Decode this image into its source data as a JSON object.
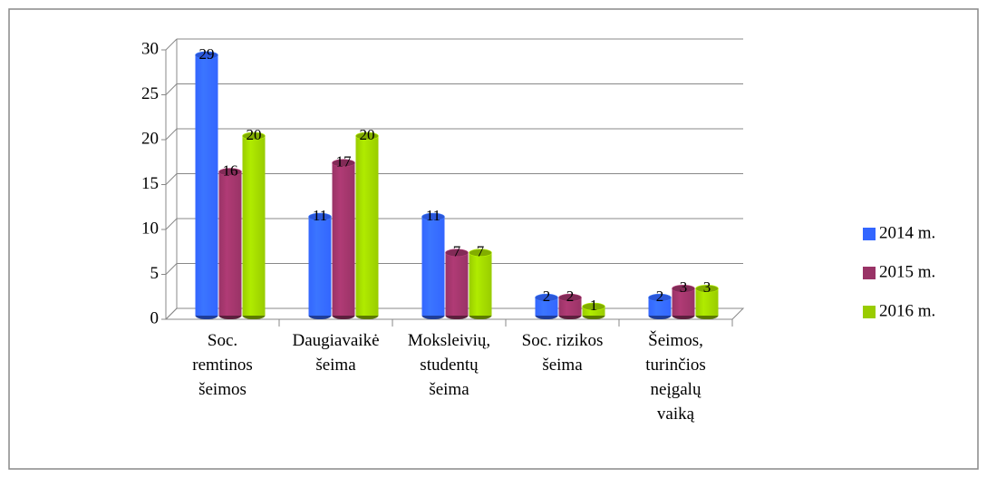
{
  "chart_data": {
    "type": "bar",
    "categories": [
      "Soc.\nremtinos\nšeimos",
      "Daugiavaikė\nšeima",
      "Moksleivių,\nstudentų\nšeima",
      "Soc. rizikos\nšeima",
      "Šeimos,\nturinčios\nneįgalų\nvaiką"
    ],
    "series": [
      {
        "name": "2014 m.",
        "color": "#3366ff",
        "values": [
          29,
          11,
          11,
          2,
          2
        ]
      },
      {
        "name": "2015 m.",
        "color": "#993366",
        "values": [
          16,
          17,
          7,
          2,
          3
        ]
      },
      {
        "name": "2016 m.",
        "color": "#99cc00",
        "values": [
          20,
          20,
          7,
          1,
          3
        ]
      }
    ],
    "ylim": [
      0,
      30
    ],
    "yticks": [
      0,
      5,
      10,
      15,
      20,
      25,
      30
    ],
    "grid": true,
    "legend": "right"
  }
}
